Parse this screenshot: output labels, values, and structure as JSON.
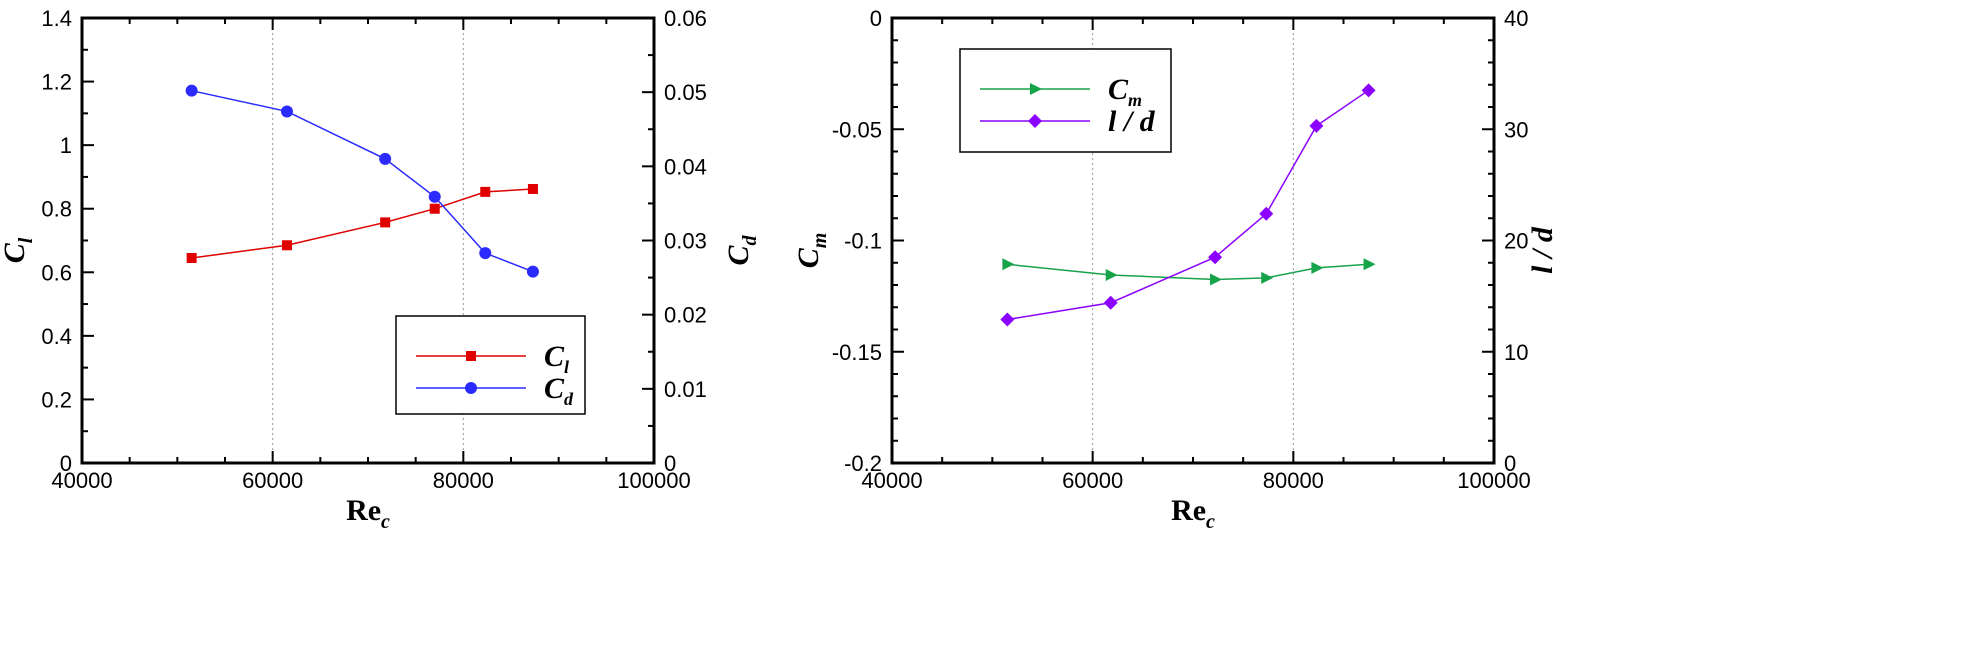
{
  "chart_data": [
    {
      "type": "line",
      "panel": "left",
      "x": [
        51500,
        61500,
        71800,
        77000,
        82300,
        87300
      ],
      "xlim": [
        40000,
        100000
      ],
      "xticks": [
        "40000",
        "60000",
        "80000",
        "100000"
      ],
      "xlabel": {
        "main": "Re",
        "sub": "c"
      },
      "y_left": {
        "label": {
          "main": "C",
          "sub": "l"
        },
        "lim": [
          0,
          1.4
        ],
        "ticks": [
          "0",
          "0.2",
          "0.4",
          "0.6",
          "0.8",
          "1",
          "1.2",
          "1.4"
        ]
      },
      "y_right": {
        "label": {
          "main": "C",
          "sub": "d"
        },
        "lim": [
          0,
          0.06
        ],
        "ticks": [
          "0",
          "0.01",
          "0.02",
          "0.03",
          "0.04",
          "0.05",
          "0.06"
        ]
      },
      "series": [
        {
          "name": "C",
          "sub": "l",
          "axis": "left",
          "color": "#e00000",
          "marker": "square",
          "values": [
            0.645,
            0.685,
            0.757,
            0.8,
            0.853,
            0.862
          ]
        },
        {
          "name": "C",
          "sub": "d",
          "axis": "right",
          "color": "#2b2bff",
          "marker": "circle",
          "values": [
            0.0502,
            0.0474,
            0.041,
            0.0359,
            0.0283,
            0.0258
          ]
        }
      ],
      "legend_position": "bottom-right"
    },
    {
      "type": "line",
      "panel": "right",
      "x": [
        51500,
        61800,
        72200,
        77300,
        82300,
        87500
      ],
      "xlim": [
        40000,
        100000
      ],
      "xticks": [
        "40000",
        "60000",
        "80000",
        "100000"
      ],
      "xlabel": {
        "main": "Re",
        "sub": "c"
      },
      "y_left": {
        "label": {
          "main": "C",
          "sub": "m"
        },
        "lim": [
          -0.2,
          0
        ],
        "ticks": [
          "-0.2",
          "-0.15",
          "-0.1",
          "-0.05",
          "0"
        ]
      },
      "y_right": {
        "label": {
          "main": "l / d",
          "sub": ""
        },
        "lim": [
          0,
          40
        ],
        "ticks": [
          "0",
          "10",
          "20",
          "30",
          "40"
        ]
      },
      "series": [
        {
          "name": "C",
          "sub": "m",
          "axis": "left",
          "color": "#17a34a",
          "marker": "triangle-right",
          "values": [
            -0.1107,
            -0.1155,
            -0.1175,
            -0.1168,
            -0.1123,
            -0.1107
          ]
        },
        {
          "name": "l / d",
          "sub": "",
          "axis": "right",
          "color": "#8b00ff",
          "marker": "diamond",
          "values": [
            12.9,
            14.4,
            18.5,
            22.4,
            30.3,
            33.5
          ]
        }
      ],
      "legend_position": "top-left"
    }
  ]
}
